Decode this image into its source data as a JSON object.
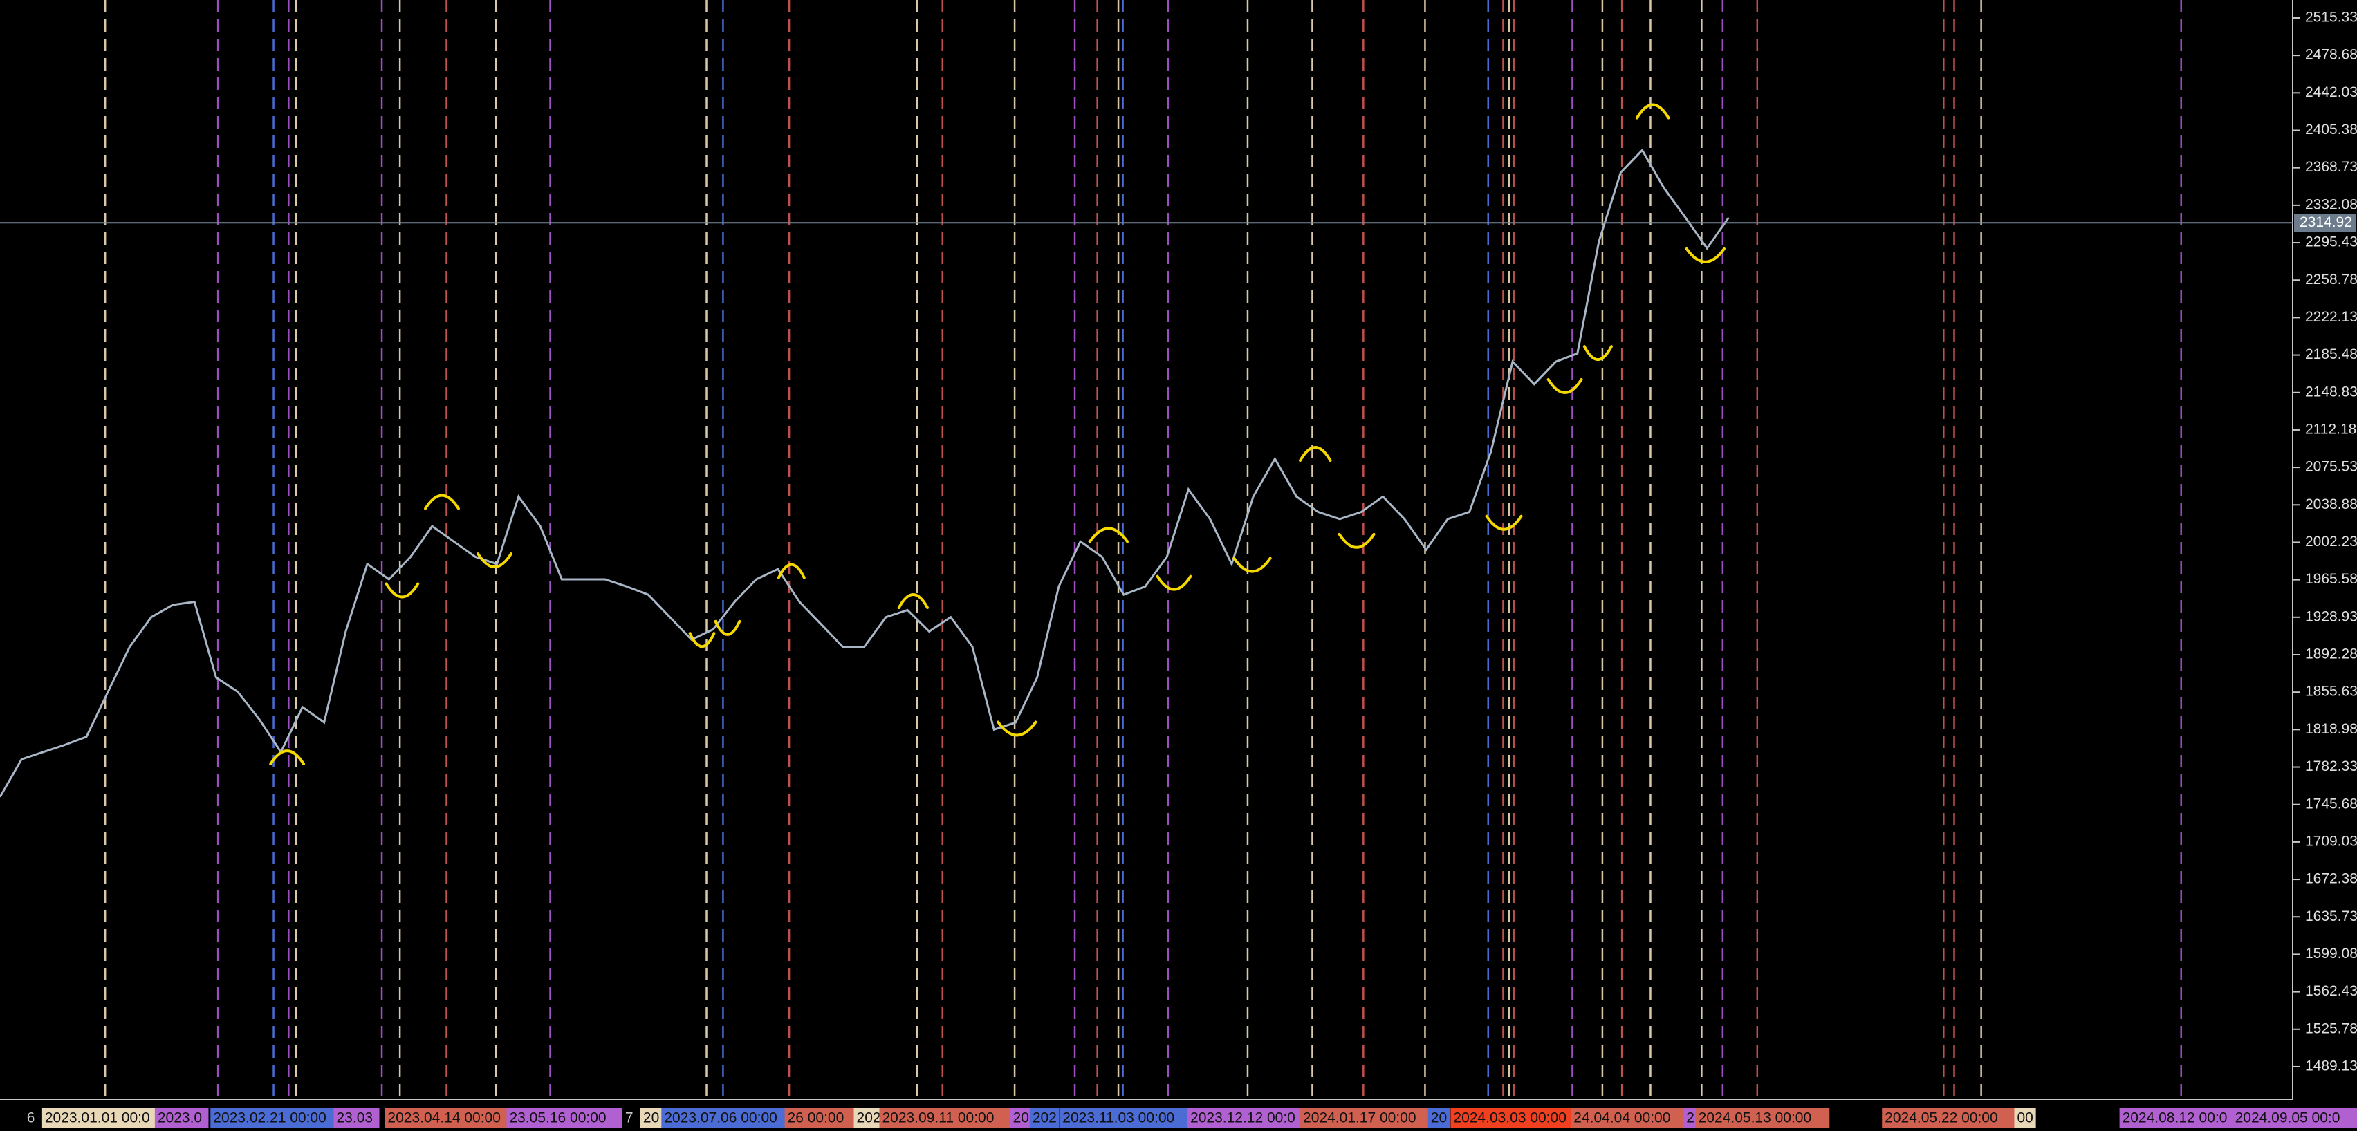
{
  "chart_data": {
    "type": "line",
    "series": [
      {
        "color": "#a8b6c6",
        "values": [
          1753,
          1790,
          1797,
          1804,
          1812,
          1856,
          1900,
          1929,
          1941,
          1944,
          1870,
          1856,
          1829,
          1797,
          1841,
          1826,
          1915,
          1981,
          1966,
          1988,
          2018,
          2003,
          1988,
          1981,
          2047,
          2018,
          1966,
          1966,
          1966,
          1959,
          1951,
          1929,
          1907,
          1917,
          1944,
          1966,
          1976,
          1944,
          1922,
          1900,
          1900,
          1929,
          1936,
          1915,
          1929,
          1900,
          1819,
          1826,
          1870,
          1959,
          2003,
          1988,
          1951,
          1959,
          1988,
          2054,
          2025,
          1981,
          2047,
          2084,
          2047,
          2032,
          2025,
          2032,
          2047,
          2025,
          1995,
          2025,
          2032,
          2091,
          2179,
          2157,
          2179,
          2187,
          2297,
          2364,
          2386,
          2349,
          2320,
          2290,
          2320
        ]
      }
    ],
    "ylim": [
      1457.3,
      2532.9
    ],
    "yticks": [
      1489.13,
      1525.78,
      1562.43,
      1599.08,
      1635.73,
      1672.38,
      1709.03,
      1745.68,
      1782.33,
      1818.98,
      1855.63,
      1892.28,
      1928.93,
      1965.58,
      2002.23,
      2038.88,
      2075.53,
      2112.18,
      2148.83,
      2185.48,
      2222.13,
      2258.78,
      2295.43,
      2332.08,
      2368.73,
      2405.38,
      2442.03,
      2478.68,
      2515.33
    ],
    "current_price": 2314.92,
    "vertical_lines": [
      {
        "color": "#d8c8a8"
      },
      {
        "color": "#9b4fc0"
      },
      {
        "color": "#4a6cd4"
      },
      {
        "color": "#9b4fc0"
      },
      {
        "color": "#d8c8a8"
      },
      {
        "color": "#9b4fc0"
      },
      {
        "color": "#d8c8a8"
      },
      {
        "color": "#c0504d"
      },
      {
        "color": "#d8c8a8"
      },
      {
        "color": "#9b4fc0"
      },
      {
        "color": "#d8c8a8"
      },
      {
        "color": "#4a6cd4"
      },
      {
        "color": "#c0504d"
      },
      {
        "color": "#d8c8a8"
      },
      {
        "color": "#c0504d"
      },
      {
        "color": "#d8c8a8"
      },
      {
        "color": "#9b4fc0"
      },
      {
        "color": "#c0504d"
      },
      {
        "color": "#d8c8a8"
      },
      {
        "color": "#4a6cd4"
      },
      {
        "color": "#9b4fc0"
      },
      {
        "color": "#d8c8a8"
      },
      {
        "color": "#d8c8a8"
      },
      {
        "color": "#c0504d"
      },
      {
        "color": "#d8c8a8"
      },
      {
        "color": "#4a6cd4"
      },
      {
        "color": "#c0504d"
      },
      {
        "color": "#d8c8a8"
      },
      {
        "color": "#c0504d"
      },
      {
        "color": "#9b4fc0"
      },
      {
        "color": "#d8c8a8"
      },
      {
        "color": "#c0504d"
      },
      {
        "color": "#d8c8a8"
      },
      {
        "color": "#d8c8a8"
      },
      {
        "color": "#9b4fc0"
      },
      {
        "color": "#c0504d"
      },
      {
        "color": "#c0504d"
      },
      {
        "color": "#c0504d"
      },
      {
        "color": "#d8c8a8"
      },
      {
        "color": "#9b4fc0"
      }
    ],
    "bottom_labels": [
      {
        "text": "6",
        "color": "#000000"
      },
      {
        "text": "2023.01.01 00:0",
        "color": "#e8d8b8"
      },
      {
        "text": "2023.0",
        "color": "#b060d0"
      },
      {
        "text": "2023.02.21 00:00",
        "color": "#4a6cd4"
      },
      {
        "text": "23.03",
        "color": "#b060d0"
      },
      {
        "text": "2023.04.14 00:00",
        "color": "#d06050"
      },
      {
        "text": "23.05.16 00:00",
        "color": "#b060d0"
      },
      {
        "text": "7",
        "color": "#000000"
      },
      {
        "text": "20",
        "color": "#e8d8b8"
      },
      {
        "text": "2023.07.06 00:00",
        "color": "#4a6cd4"
      },
      {
        "text": "26 00:00",
        "color": "#d06050"
      },
      {
        "text": "202",
        "color": "#e8d8b8"
      },
      {
        "text": "2023.09.11 00:00",
        "color": "#d06050"
      },
      {
        "text": "20",
        "color": "#b060d0"
      },
      {
        "text": "202",
        "color": "#4a6cd4"
      },
      {
        "text": "2023.11.03 00:00",
        "color": "#4a6cd4"
      },
      {
        "text": "2023.12.12 00:0",
        "color": "#b060d0"
      },
      {
        "text": "2024.01.17 00:00",
        "color": "#d06050"
      },
      {
        "text": "20",
        "color": "#4a6cd4"
      },
      {
        "text": "2024.03.03 00:00",
        "color": "#f04020"
      },
      {
        "text": "24.04.04 00:00",
        "color": "#d06050"
      },
      {
        "text": "2",
        "color": "#b060d0"
      },
      {
        "text": "2024.05.13 00:00",
        "color": "#d06050"
      },
      {
        "text": "2024.05.22 00:00",
        "color": "#d06050"
      },
      {
        "text": "00",
        "color": "#e8d8b8"
      },
      {
        "text": "2024.08.12 00:0",
        "color": "#b060d0"
      },
      {
        "text": "2024.09.05 00:0",
        "color": "#b060d0"
      }
    ]
  }
}
